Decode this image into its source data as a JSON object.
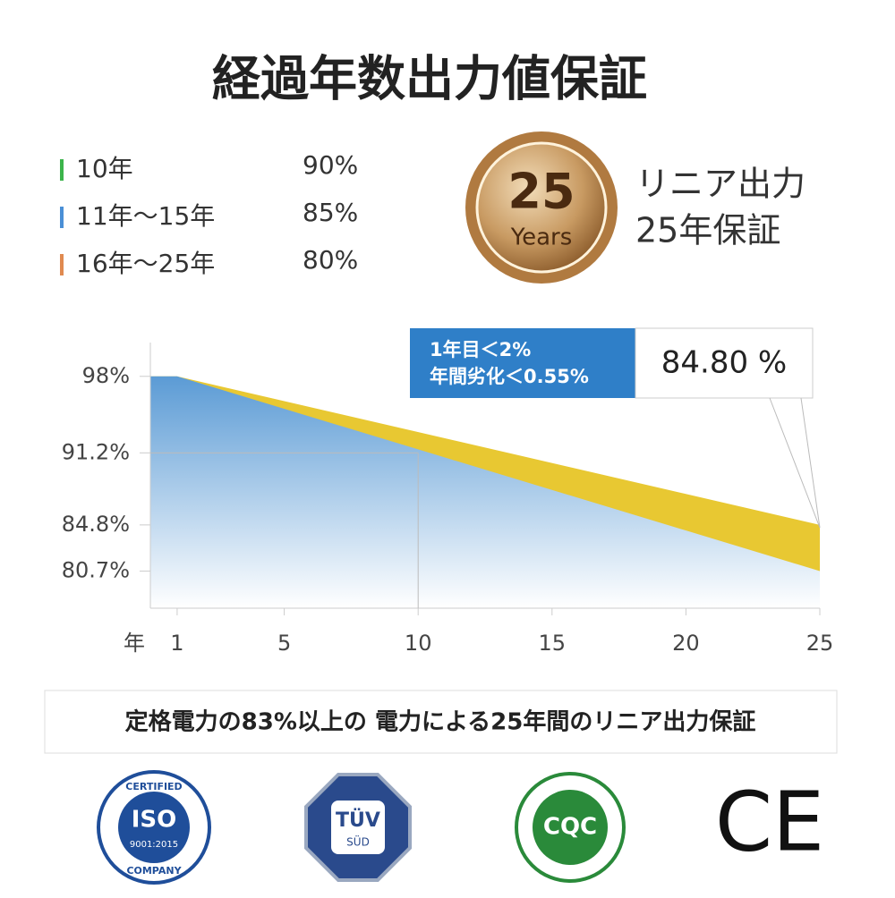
{
  "title": "経過年数出力値保証",
  "legend": [
    {
      "label": "10年",
      "value": "90%",
      "color": "#3cb44b"
    },
    {
      "label": "11年〜15年",
      "value": "85%",
      "color": "#4a8fd6"
    },
    {
      "label": "16年〜25年",
      "value": "80%",
      "color": "#e08a50"
    }
  ],
  "badge": {
    "number": "25",
    "unit": "Years",
    "text": [
      "リニア出力",
      "25年保証"
    ]
  },
  "chart_data": {
    "type": "area",
    "x_label": "年",
    "x": [
      0,
      1,
      25
    ],
    "series": [
      {
        "color": "#e8c832",
        "values": [
          98,
          98,
          84.8
        ]
      },
      {
        "color": "#5b9bd5",
        "values": [
          98,
          98,
          80.7
        ]
      }
    ],
    "xlim": [
      0,
      25
    ],
    "xticks": [
      1,
      5,
      10,
      15,
      20,
      25
    ],
    "ylim": [
      77.4,
      101
    ],
    "yticks": [
      {
        "value": 98,
        "label": "98%"
      },
      {
        "value": 91.2,
        "label": "91.2%"
      },
      {
        "value": 84.8,
        "label": "84.8%"
      },
      {
        "value": 80.7,
        "label": "80.7%"
      }
    ],
    "crosshair": {
      "x": 10,
      "y": 91.2
    },
    "annotation": [
      "1年目＜2%",
      "年間劣化＜0.55%"
    ],
    "callout": "84.80 %"
  },
  "footer": "定格電力の83%以上の 電力による25年間のリニア出力保証",
  "logos": {
    "iso": [
      "CERTIFIED",
      "ISO",
      "9001:2015",
      "COMPANY"
    ],
    "tuv": [
      "TÜV",
      "SÜD"
    ],
    "cqc": "CQC",
    "ce": "CE"
  }
}
